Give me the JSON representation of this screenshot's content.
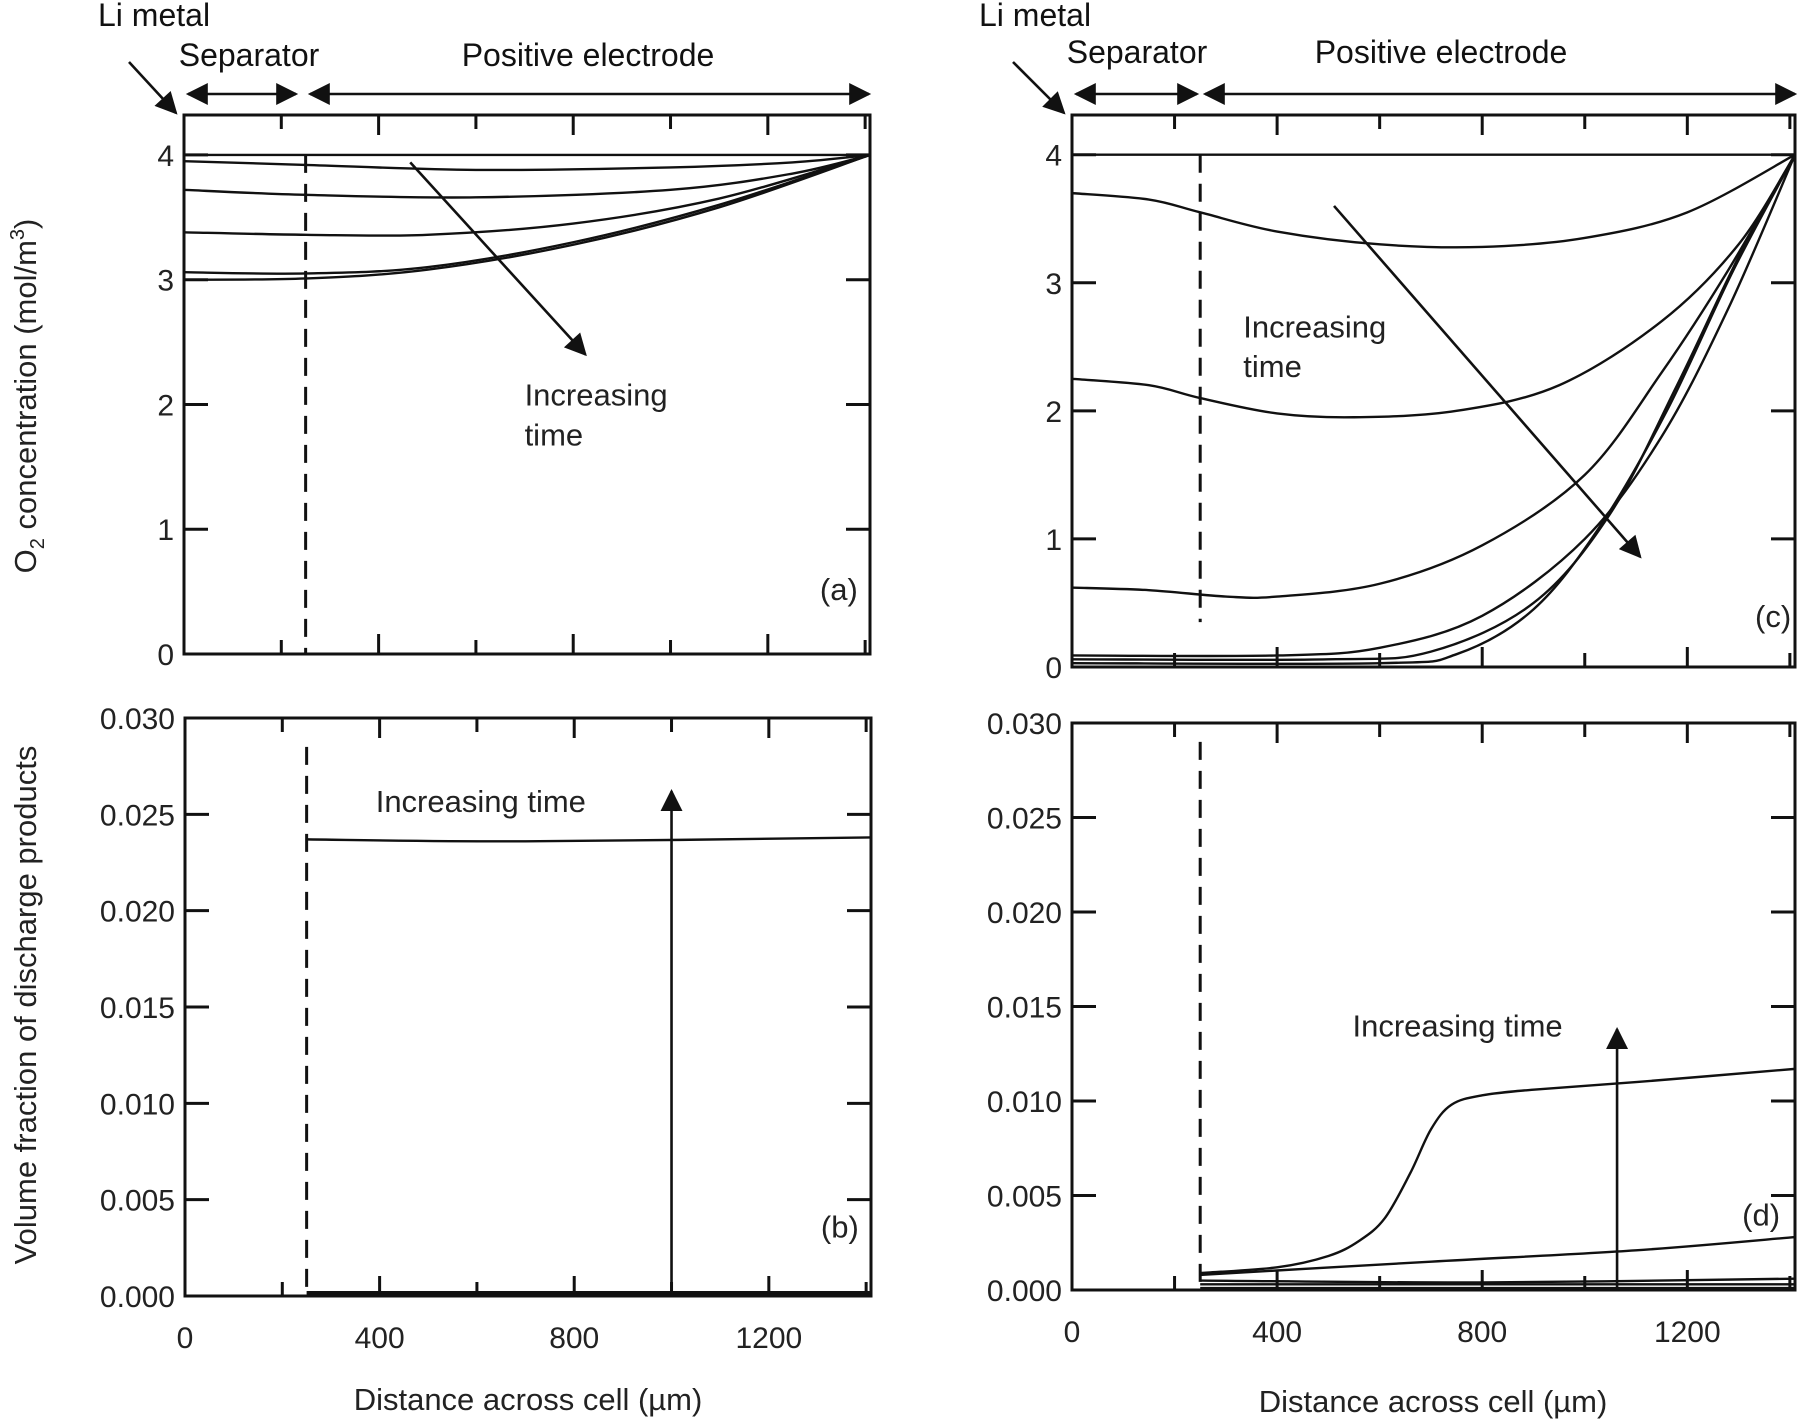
{
  "header_left": {
    "li_metal": "Li metal",
    "separator": "Separator",
    "positive_electrode": "Positive electrode"
  },
  "header_right": {
    "li_metal": "Li metal",
    "separator": "Separator",
    "positive_electrode": "Positive electrode"
  },
  "ylabel_top": {
    "main": "O",
    "sub": "2",
    "mid": " concentration (mol/m",
    "sup": "3",
    "end": ")"
  },
  "ylabel_bottom": "Volume fraction of discharge products",
  "xlabel": "Distance across cell (µm)",
  "chart_data": [
    {
      "id": "a",
      "type": "line",
      "panel_label": "(a)",
      "xlim": [
        0,
        1410
      ],
      "ylim": [
        0,
        4.32
      ],
      "yticks": [
        0,
        1,
        2,
        3,
        4
      ],
      "ytick_labels": [
        "0",
        "1",
        "2",
        "3",
        "4"
      ],
      "xticks": [
        0,
        200,
        400,
        600,
        800,
        1000,
        1200,
        1400
      ],
      "xtick_labels": [],
      "separator_x": 250,
      "separator_yrange": [
        0,
        4.0
      ],
      "annotation": {
        "text": [
          "Increasing",
          "time"
        ],
        "x": 700,
        "y": [
          2.08,
          1.76
        ]
      },
      "arrow": {
        "from": [
          465,
          3.94
        ],
        "to": [
          825,
          2.4
        ]
      },
      "label_pos": [
        1307,
        0.52
      ],
      "series": [
        {
          "name": "t1",
          "x": [
            0,
            1410
          ],
          "y": [
            4.0,
            4.0
          ]
        },
        {
          "name": "t2",
          "x": [
            0,
            250,
            600,
            1000,
            1250,
            1410
          ],
          "y": [
            3.95,
            3.92,
            3.88,
            3.9,
            3.94,
            4.0
          ]
        },
        {
          "name": "t3",
          "x": [
            0,
            250,
            600,
            1000,
            1250,
            1410
          ],
          "y": [
            3.72,
            3.68,
            3.66,
            3.72,
            3.85,
            4.0
          ]
        },
        {
          "name": "t4",
          "x": [
            0,
            250,
            500,
            800,
            1100,
            1410
          ],
          "y": [
            3.38,
            3.36,
            3.36,
            3.45,
            3.65,
            4.0
          ]
        },
        {
          "name": "t5",
          "x": [
            0,
            250,
            500,
            800,
            1100,
            1410
          ],
          "y": [
            3.06,
            3.05,
            3.1,
            3.3,
            3.6,
            4.0
          ]
        },
        {
          "name": "t6",
          "x": [
            0,
            250,
            500,
            800,
            1100,
            1410
          ],
          "y": [
            3.0,
            3.01,
            3.08,
            3.28,
            3.58,
            4.0
          ]
        }
      ]
    },
    {
      "id": "b",
      "type": "line",
      "panel_label": "(b)",
      "xlim": [
        0,
        1410
      ],
      "ylim": [
        0,
        0.03
      ],
      "yticks": [
        0,
        0.005,
        0.01,
        0.015,
        0.02,
        0.025,
        0.03
      ],
      "ytick_labels": [
        "0.000",
        "0.005",
        "0.010",
        "0.015",
        "0.020",
        "0.025",
        "0.030"
      ],
      "xticks": [
        0,
        200,
        400,
        600,
        800,
        1000,
        1200,
        1400
      ],
      "xtick_labels": [
        "0",
        "",
        "400",
        "",
        "800",
        "",
        "1200",
        ""
      ],
      "separator_x": 250,
      "separator_yrange": [
        0,
        0.0285
      ],
      "annotation": {
        "text": [
          "Increasing time"
        ],
        "x": 392,
        "y": [
          0.0257
        ]
      },
      "arrow": {
        "from": [
          1000,
          0.0
        ],
        "to": [
          1000,
          0.0262
        ]
      },
      "label_pos": [
        1307,
        0.0036
      ],
      "series": [
        {
          "name": "t1",
          "x": [
            250,
            1410
          ],
          "y": [
            0.0,
            0.0
          ]
        },
        {
          "name": "t2",
          "x": [
            250,
            1410
          ],
          "y": [
            0.0001,
            0.0001
          ]
        },
        {
          "name": "t3",
          "x": [
            250,
            1410
          ],
          "y": [
            0.0002,
            0.0002
          ]
        },
        {
          "name": "t4",
          "x": [
            250,
            700,
            1410
          ],
          "y": [
            0.0237,
            0.0236,
            0.0238
          ]
        }
      ]
    },
    {
      "id": "c",
      "type": "line",
      "panel_label": "(c)",
      "xlim": [
        0,
        1410
      ],
      "ylim": [
        0,
        4.31
      ],
      "yticks": [
        0,
        1,
        2,
        3,
        4
      ],
      "ytick_labels": [
        "0",
        "1",
        "2",
        "3",
        "4"
      ],
      "xticks": [
        0,
        200,
        400,
        600,
        800,
        1000,
        1200,
        1400
      ],
      "xtick_labels": [],
      "separator_x": 250,
      "separator_yrange": [
        0.35,
        4.0
      ],
      "annotation": {
        "text": [
          "Increasing",
          "time"
        ],
        "x": 334,
        "y": [
          2.66,
          2.35
        ]
      },
      "arrow": {
        "from": [
          511,
          3.6
        ],
        "to": [
          1108,
          0.86
        ]
      },
      "label_pos": [
        1332,
        0.4
      ],
      "series": [
        {
          "name": "t1",
          "x": [
            0,
            1410
          ],
          "y": [
            4.0,
            4.0
          ]
        },
        {
          "name": "t2",
          "x": [
            0,
            150,
            250,
            400,
            600,
            800,
            1000,
            1200,
            1410
          ],
          "y": [
            3.7,
            3.65,
            3.55,
            3.4,
            3.3,
            3.28,
            3.35,
            3.55,
            4.0
          ]
        },
        {
          "name": "t3",
          "x": [
            0,
            150,
            250,
            400,
            550,
            750,
            950,
            1150,
            1300,
            1410
          ],
          "y": [
            2.25,
            2.2,
            2.1,
            1.98,
            1.95,
            2.0,
            2.2,
            2.7,
            3.3,
            4.0
          ]
        },
        {
          "name": "t4",
          "x": [
            0,
            150,
            300,
            400,
            600,
            800,
            1000,
            1150,
            1280,
            1410
          ],
          "y": [
            0.62,
            0.6,
            0.55,
            0.55,
            0.65,
            0.95,
            1.5,
            2.3,
            3.1,
            4.0
          ]
        },
        {
          "name": "t5",
          "x": [
            0,
            400,
            600,
            800,
            1000,
            1150,
            1280,
            1410
          ],
          "y": [
            0.09,
            0.09,
            0.15,
            0.4,
            1.0,
            1.8,
            2.8,
            4.0
          ]
        },
        {
          "name": "t6",
          "x": [
            0,
            500,
            700,
            900,
            1050,
            1180,
            1300,
            1410
          ],
          "y": [
            0.06,
            0.06,
            0.12,
            0.5,
            1.2,
            2.2,
            3.2,
            4.0
          ]
        },
        {
          "name": "t7",
          "x": [
            0,
            600,
            750,
            900,
            1030,
            1160,
            1290,
            1410
          ],
          "y": [
            0.03,
            0.03,
            0.1,
            0.45,
            1.1,
            2.0,
            3.1,
            4.0
          ]
        }
      ]
    },
    {
      "id": "d",
      "type": "line",
      "panel_label": "(d)",
      "xlim": [
        0,
        1410
      ],
      "ylim": [
        0,
        0.03
      ],
      "yticks": [
        0,
        0.005,
        0.01,
        0.015,
        0.02,
        0.025,
        0.03
      ],
      "ytick_labels": [
        "0.000",
        "0.005",
        "0.010",
        "0.015",
        "0.020",
        "0.025",
        "0.030"
      ],
      "xticks": [
        0,
        200,
        400,
        600,
        800,
        1000,
        1200,
        1400
      ],
      "xtick_labels": [
        "0",
        "",
        "400",
        "",
        "800",
        "",
        "1200",
        ""
      ],
      "separator_x": 250,
      "separator_yrange": [
        0,
        0.029
      ],
      "annotation": {
        "text": [
          "Increasing time"
        ],
        "x": 547,
        "y": [
          0.014
        ]
      },
      "arrow": {
        "from": [
          1063,
          0.0
        ],
        "to": [
          1063,
          0.0138
        ]
      },
      "label_pos": [
        1307,
        0.004
      ],
      "series": [
        {
          "name": "t1",
          "x": [
            250,
            1410
          ],
          "y": [
            0.0001,
            0.0001
          ]
        },
        {
          "name": "t2",
          "x": [
            250,
            1410
          ],
          "y": [
            0.0003,
            0.0003
          ]
        },
        {
          "name": "t3",
          "x": [
            250,
            800,
            1410
          ],
          "y": [
            0.0005,
            0.0004,
            0.0006
          ]
        },
        {
          "name": "t4",
          "x": [
            250,
            700,
            1100,
            1410
          ],
          "y": [
            0.0008,
            0.0015,
            0.0021,
            0.0028
          ]
        },
        {
          "name": "t5",
          "x": [
            250,
            400,
            500,
            560,
            610,
            660,
            700,
            740,
            800,
            900,
            1100,
            1410
          ],
          "y": [
            0.0009,
            0.0012,
            0.0018,
            0.0026,
            0.0038,
            0.0062,
            0.0085,
            0.0098,
            0.0103,
            0.0106,
            0.011,
            0.0117
          ]
        }
      ]
    }
  ]
}
